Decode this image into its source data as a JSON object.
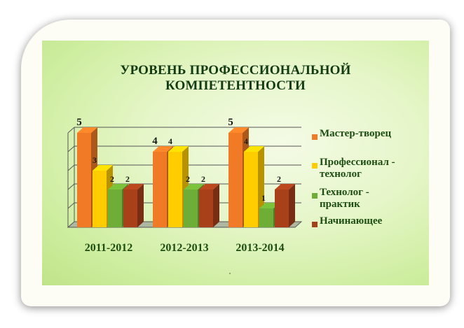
{
  "chart_data": {
    "type": "bar",
    "title_lines": [
      "УРОВЕНЬ ПРОФЕССИОНАЛЬНОЙ",
      "КОМПЕТЕНТНОСТИ"
    ],
    "categories": [
      "2011-2012",
      "2012-2013",
      "2013-2014"
    ],
    "series": [
      {
        "name": "Мастер-творец",
        "values": [
          5,
          4,
          5
        ],
        "color": "#f07a26"
      },
      {
        "name": "Профессионал - технолог",
        "values": [
          3,
          4,
          4
        ],
        "color": "#ffcc00"
      },
      {
        "name": "Технолог - практик",
        "values": [
          2,
          2,
          1
        ],
        "color": "#6fae36"
      },
      {
        "name": "Начинающее",
        "values": [
          2,
          2,
          2
        ],
        "color": "#a8401a"
      }
    ],
    "legend_lines": [
      [
        "Мастер-творец"
      ],
      [
        "Профессионал -",
        "технолог"
      ],
      [
        "Технолог -",
        "практик"
      ],
      [
        "Начинающее"
      ]
    ],
    "ylim": [
      0,
      5
    ],
    "grid": true,
    "legend_position": "right",
    "style": "3d"
  },
  "colors": {
    "title": "#123a12",
    "labels": "#1d4d12",
    "background": "#d9f2b0"
  }
}
